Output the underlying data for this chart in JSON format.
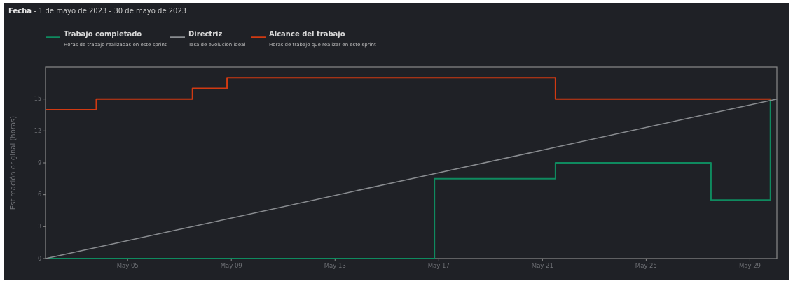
{
  "chart_data": {
    "type": "step",
    "title": "Fecha",
    "subtitle": "- 1 de mayo de 2023 - 30 de mayo de 2023",
    "ylabel": "Estimación original (horas)",
    "annotations": [
      "Horas de trabajo realizadas en este sprint",
      "Tasa de evolución ideal",
      "Horas de trabajo que realizar en este sprint"
    ],
    "xlim": [
      "2023-05-01T20:00",
      "2023-05-30T01:00"
    ],
    "xticks": [
      {
        "value": "2023-05-05",
        "label": "May 05"
      },
      {
        "value": "2023-05-09",
        "label": "May 09"
      },
      {
        "value": "2023-05-13",
        "label": "May 13"
      },
      {
        "value": "2023-05-17",
        "label": "May 17"
      },
      {
        "value": "2023-05-21",
        "label": "May 21"
      },
      {
        "value": "2023-05-25",
        "label": "May 25"
      },
      {
        "value": "2023-05-29",
        "label": "May 29"
      }
    ],
    "ylim": [
      0,
      18
    ],
    "yticks": [
      0,
      3,
      6,
      9,
      12,
      15
    ],
    "grid": false,
    "legend": "top left",
    "series": [
      {
        "name": "Trabajo completado",
        "color": "#0f8a5f",
        "x": [
          "2023-05-01T20:00",
          "2023-05-16T20:00",
          "2023-05-21T12:00",
          "2023-05-27T12:00",
          "2023-05-29T19:00"
        ],
        "values": [
          0,
          7.5,
          9,
          5.5,
          15
        ]
      },
      {
        "name": "Directriz",
        "type": "line",
        "color": "#8a8d91",
        "x": [
          "2023-05-01T20:00",
          "2023-05-30T01:00"
        ],
        "values": [
          0,
          15
        ]
      },
      {
        "name": "Alcance del trabajo",
        "color": "#d13a12",
        "x": [
          "2023-05-01T20:00",
          "2023-05-03T19:00",
          "2023-05-07T12:00",
          "2023-05-08T20:00",
          "2023-05-21T12:00",
          "2023-05-29T19:00"
        ],
        "values": [
          14,
          15,
          16,
          17,
          15,
          15
        ]
      }
    ]
  }
}
